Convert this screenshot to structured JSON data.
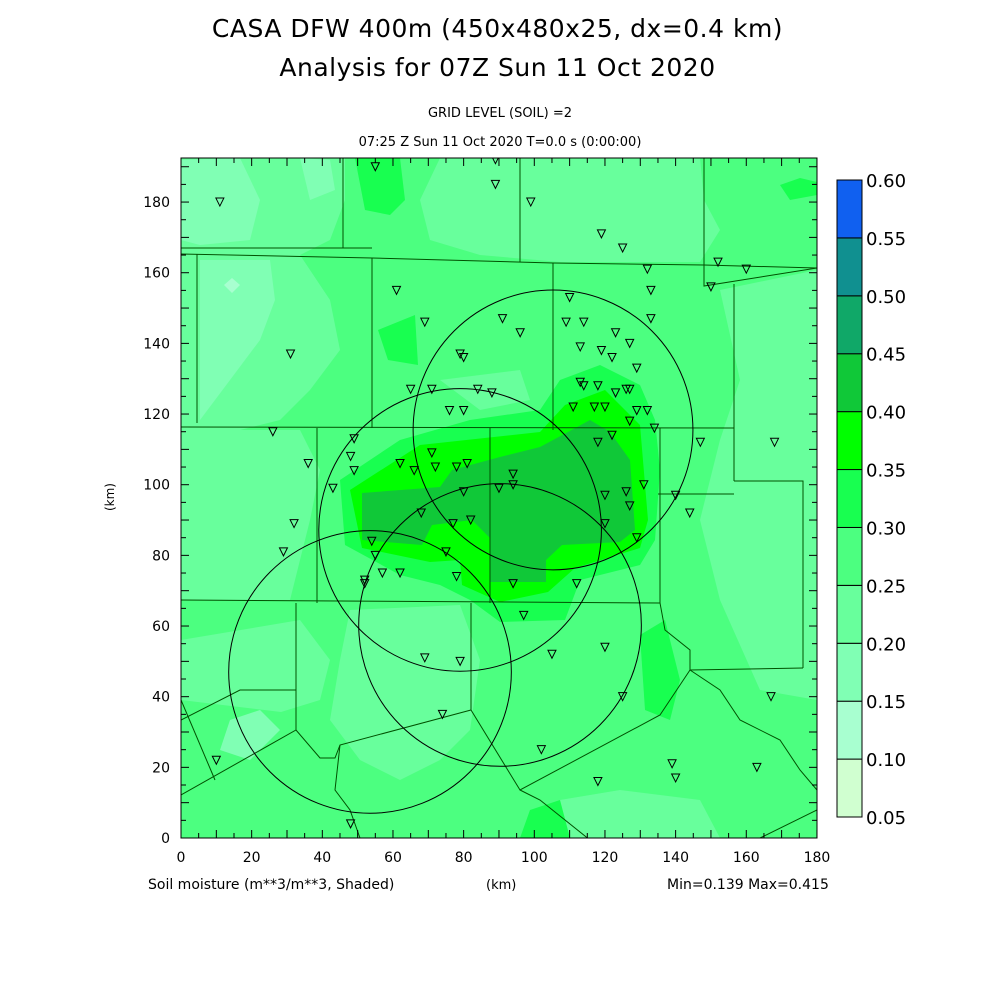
{
  "header": {
    "title_line1": "CASA DFW 400m (450x480x25, dx=0.4 km)",
    "title_line2": "Analysis for 07Z Sun 11 Oct 2020",
    "subtitle_level": "GRID LEVEL (SOIL) =2",
    "subtitle_time": "07:25 Z Sun 11 Oct 2020   T=0.0 s (0:00:00)"
  },
  "footer": {
    "variable": "Soil moisture (m**3/m**3, Shaded)",
    "x_unit": "(km)",
    "minmax": "Min=0.139 Max=0.415"
  },
  "chart_data": {
    "type": "heatmap",
    "xlabel": "(km)",
    "ylabel": "(km)",
    "xlim": [
      0,
      180
    ],
    "ylim": [
      0,
      192
    ],
    "x_ticks": [
      "0",
      "20",
      "40",
      "60",
      "80",
      "100",
      "120",
      "140",
      "160",
      "180"
    ],
    "y_ticks": [
      "0",
      "20",
      "40",
      "60",
      "80",
      "100",
      "120",
      "140",
      "160",
      "180"
    ],
    "min": 0.139,
    "max": 0.415,
    "colorbar": {
      "levels": [
        "0.05",
        "0.10",
        "0.15",
        "0.20",
        "0.25",
        "0.30",
        "0.35",
        "0.40",
        "0.45",
        "0.50",
        "0.55",
        "0.60"
      ],
      "colors": [
        "#d0ffd0",
        "#a8ffd0",
        "#80ffb4",
        "#68ff9c",
        "#4cff80",
        "#18ff50",
        "#00ff00",
        "#10c838",
        "#10a868",
        "#109090",
        "#1060f0"
      ]
    },
    "radar_rings_km": [
      {
        "cx": 105.3,
        "cy": 115.5,
        "r": 39.6
      },
      {
        "cx": 79.0,
        "cy": 87.2,
        "r": 40.0
      },
      {
        "cx": 90.3,
        "cy": 60.3,
        "r": 40.0
      },
      {
        "cx": 53.5,
        "cy": 47.0,
        "r": 40.0
      }
    ],
    "stations_km": [
      [
        11,
        180
      ],
      [
        55,
        190
      ],
      [
        89,
        192
      ],
      [
        89,
        185
      ],
      [
        99,
        180
      ],
      [
        119,
        171
      ],
      [
        125,
        167
      ],
      [
        132,
        161
      ],
      [
        152,
        163
      ],
      [
        160,
        161
      ],
      [
        150,
        156
      ],
      [
        61,
        155
      ],
      [
        133,
        155
      ],
      [
        110,
        153
      ],
      [
        69,
        146
      ],
      [
        91,
        147
      ],
      [
        96,
        143
      ],
      [
        109,
        146
      ],
      [
        114,
        146
      ],
      [
        123,
        143
      ],
      [
        133,
        147
      ],
      [
        31,
        137
      ],
      [
        79,
        137
      ],
      [
        80,
        136
      ],
      [
        113,
        139
      ],
      [
        119,
        138
      ],
      [
        122,
        136
      ],
      [
        127,
        140
      ],
      [
        129,
        133
      ],
      [
        126,
        127
      ],
      [
        65,
        127
      ],
      [
        71,
        127
      ],
      [
        84,
        127
      ],
      [
        88,
        126
      ],
      [
        113,
        129
      ],
      [
        114,
        128
      ],
      [
        118,
        128
      ],
      [
        123,
        126
      ],
      [
        127,
        127
      ],
      [
        76,
        121
      ],
      [
        80,
        121
      ],
      [
        111,
        122
      ],
      [
        117,
        122
      ],
      [
        120,
        122
      ],
      [
        127,
        118
      ],
      [
        129,
        121
      ],
      [
        132,
        121
      ],
      [
        134,
        116
      ],
      [
        26,
        115
      ],
      [
        49,
        113
      ],
      [
        118,
        112
      ],
      [
        122,
        114
      ],
      [
        147,
        112
      ],
      [
        168,
        112
      ],
      [
        48,
        108
      ],
      [
        71,
        109
      ],
      [
        62,
        106
      ],
      [
        36,
        106
      ],
      [
        49,
        104
      ],
      [
        66,
        104
      ],
      [
        72,
        105
      ],
      [
        78,
        105
      ],
      [
        81,
        106
      ],
      [
        94,
        103
      ],
      [
        94,
        100
      ],
      [
        90,
        99
      ],
      [
        43,
        99
      ],
      [
        80,
        98
      ],
      [
        131,
        100
      ],
      [
        126,
        98
      ],
      [
        140,
        97
      ],
      [
        120,
        97
      ],
      [
        127,
        94
      ],
      [
        144,
        92
      ],
      [
        68,
        92
      ],
      [
        32,
        89
      ],
      [
        77,
        89
      ],
      [
        82,
        90
      ],
      [
        120,
        89
      ],
      [
        54,
        84
      ],
      [
        129,
        85
      ],
      [
        29,
        81
      ],
      [
        75,
        81
      ],
      [
        55,
        80
      ],
      [
        57,
        75
      ],
      [
        62,
        75
      ],
      [
        78,
        74
      ],
      [
        94,
        72
      ],
      [
        112,
        72
      ],
      [
        52,
        72
      ],
      [
        52,
        73
      ],
      [
        97,
        63
      ],
      [
        69,
        51
      ],
      [
        79,
        50
      ],
      [
        105,
        52
      ],
      [
        120,
        54
      ],
      [
        125,
        40
      ],
      [
        167,
        40
      ],
      [
        74,
        35
      ],
      [
        102,
        25
      ],
      [
        10,
        22
      ],
      [
        139,
        21
      ],
      [
        140,
        17
      ],
      [
        118,
        16
      ],
      [
        163,
        20
      ],
      [
        48,
        4
      ]
    ]
  }
}
